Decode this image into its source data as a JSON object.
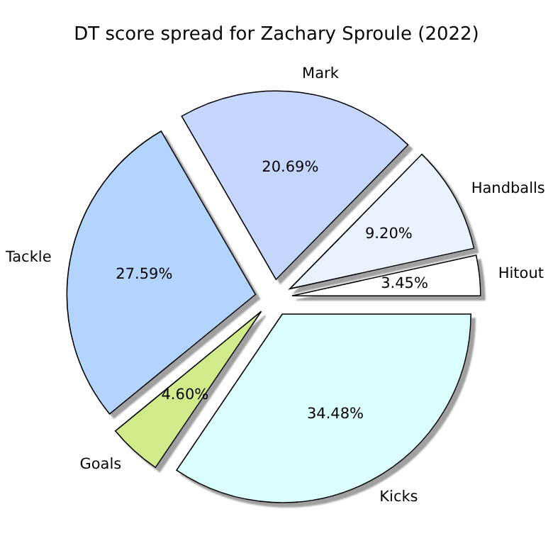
{
  "chart_data": {
    "type": "pie",
    "title": "DT score spread for Zachary Sproule (2022)",
    "categories": [
      "Hitout",
      "Handballs",
      "Mark",
      "Tackle",
      "Goals",
      "Kicks"
    ],
    "values": [
      3.45,
      9.2,
      20.69,
      27.59,
      4.6,
      34.48
    ],
    "value_labels": [
      "3.45%",
      "9.20%",
      "20.69%",
      "27.59%",
      "4.60%",
      "34.48%"
    ],
    "colors": [
      "#ffffff",
      "#eaf1ff",
      "#c5d7ff",
      "#b3d4ff",
      "#d1eb8a",
      "#dbffff"
    ]
  }
}
